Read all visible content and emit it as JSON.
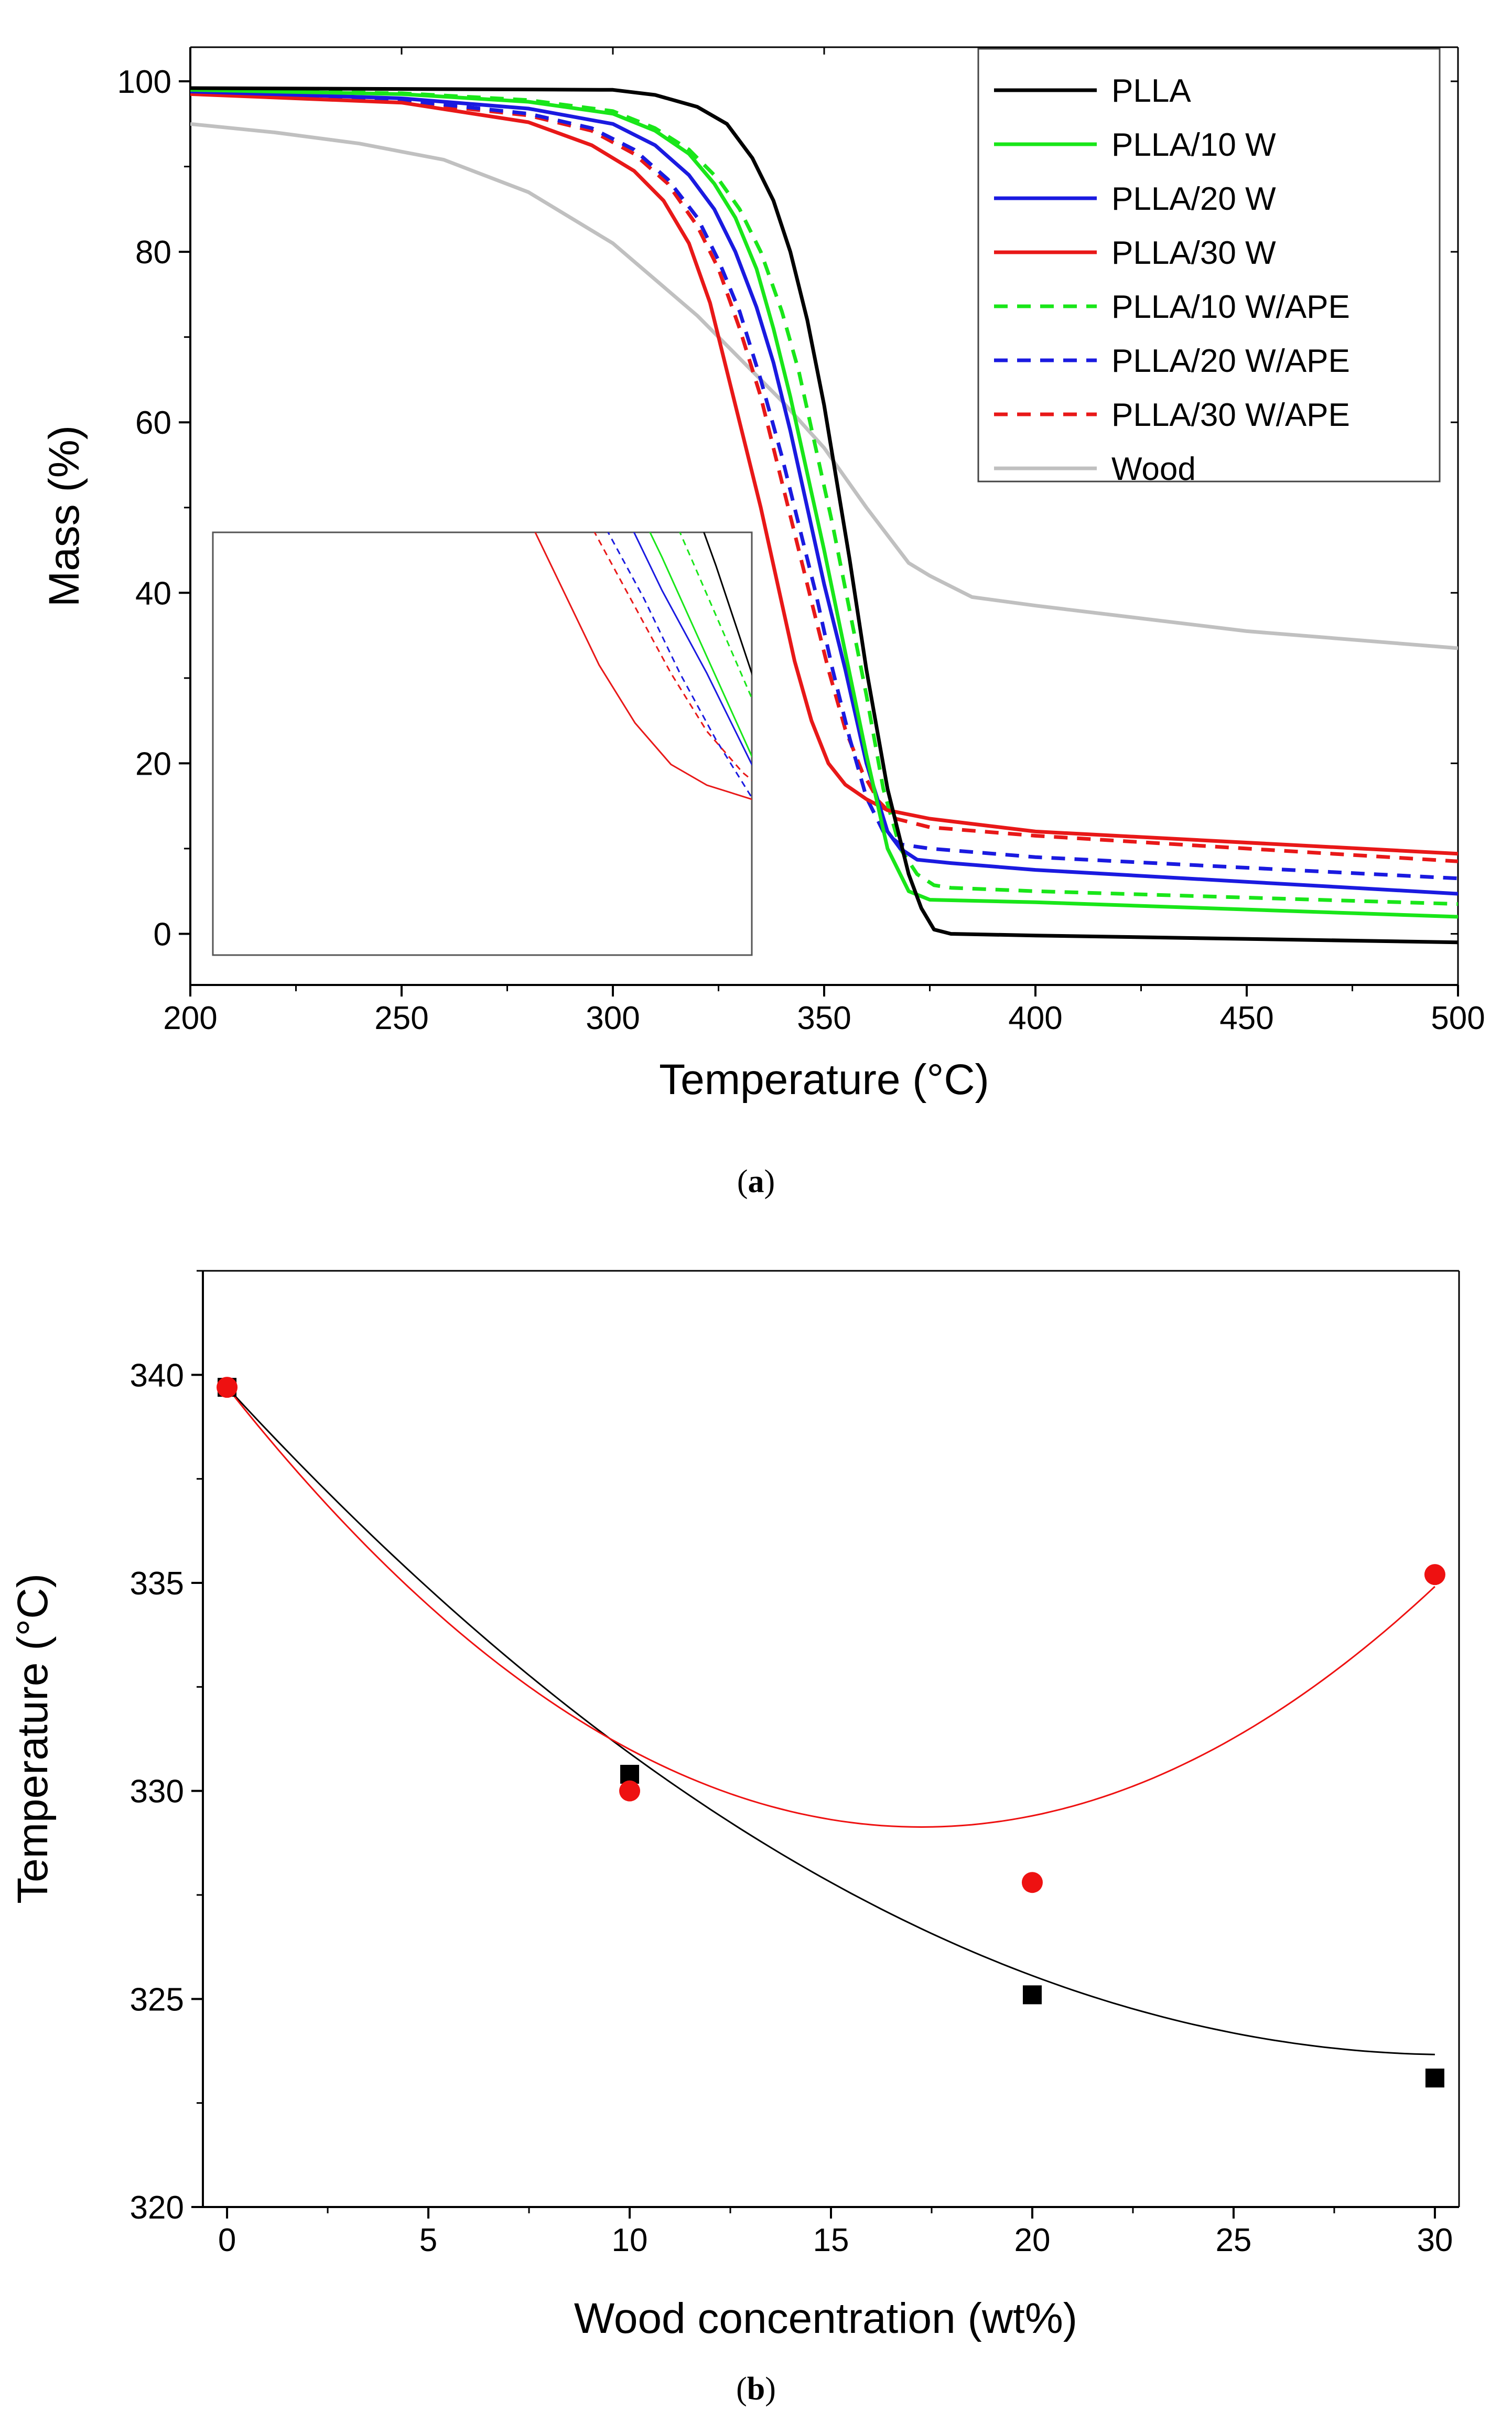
{
  "chart_data": [
    {
      "panel": "a",
      "panel_label": {
        "open": "(",
        "letter": "a",
        "close": ")"
      },
      "type": "line",
      "title": "",
      "xlabel": "Temperature (°C)",
      "ylabel": "Mass (%)",
      "xlim": [
        200,
        500
      ],
      "ylim": [
        -6,
        104
      ],
      "xticks": [
        200,
        250,
        300,
        350,
        400,
        450,
        500
      ],
      "yticks": [
        0,
        20,
        40,
        60,
        80,
        100
      ],
      "grid": false,
      "legend_position": "top-right",
      "series": [
        {
          "name": "PLLA",
          "color": "#000000",
          "dash": "solid",
          "x": [
            200,
            300,
            310,
            320,
            327,
            333,
            338,
            342,
            346,
            350,
            353,
            356,
            360,
            365,
            370,
            373,
            376,
            380,
            400,
            500
          ],
          "y": [
            99.2,
            99.0,
            98.4,
            97.0,
            95.0,
            91.0,
            86.0,
            80.0,
            72.0,
            62.0,
            53.0,
            44.0,
            31.0,
            17.0,
            7.0,
            3.0,
            0.5,
            0.0,
            -0.2,
            -1.0
          ]
        },
        {
          "name": "PLLA/10 W",
          "color": "#19e619",
          "dash": "solid",
          "x": [
            200,
            250,
            280,
            300,
            310,
            318,
            324,
            329,
            334,
            338,
            342,
            346,
            350,
            355,
            360,
            365,
            370,
            375,
            400,
            500
          ],
          "y": [
            99.0,
            98.5,
            97.6,
            96.2,
            94.2,
            91.5,
            88.0,
            84.0,
            78.0,
            71.0,
            63.0,
            54.0,
            45.0,
            33.0,
            21.0,
            10.0,
            5.0,
            4.0,
            3.7,
            2.0
          ]
        },
        {
          "name": "PLLA/20 W",
          "color": "#1a1ae0",
          "dash": "solid",
          "x": [
            200,
            250,
            280,
            300,
            310,
            318,
            324,
            329,
            334,
            338,
            342,
            346,
            350,
            355,
            360,
            365,
            368,
            372,
            380,
            400,
            500
          ],
          "y": [
            98.8,
            98.0,
            96.8,
            95.0,
            92.5,
            89.0,
            85.0,
            80.0,
            73.5,
            67.0,
            59.0,
            50.0,
            41.0,
            31.0,
            20.0,
            12.0,
            10.0,
            8.7,
            8.3,
            7.5,
            4.7
          ]
        },
        {
          "name": "PLLA/30 W",
          "color": "#e81818",
          "dash": "solid",
          "x": [
            200,
            250,
            280,
            295,
            305,
            312,
            318,
            323,
            327,
            331,
            335,
            339,
            343,
            347,
            351,
            355,
            360,
            365,
            375,
            400,
            500
          ],
          "y": [
            98.5,
            97.5,
            95.2,
            92.5,
            89.5,
            86.0,
            81.0,
            74.0,
            66.0,
            58.0,
            50.0,
            41.0,
            32.0,
            25.0,
            20.0,
            17.5,
            15.8,
            14.5,
            13.5,
            12.0,
            9.4
          ]
        },
        {
          "name": "PLLA/10 W/APE",
          "color": "#19e619",
          "dash": "dashed",
          "x": [
            200,
            250,
            280,
            300,
            310,
            318,
            325,
            330,
            335,
            340,
            344,
            348,
            352,
            356,
            360,
            364,
            368,
            372,
            376,
            380,
            400,
            500
          ],
          "y": [
            99.0,
            98.6,
            97.8,
            96.5,
            94.5,
            92.0,
            88.5,
            85.0,
            80.0,
            73.0,
            66.0,
            57.0,
            48.0,
            38.0,
            28.0,
            17.0,
            10.0,
            7.0,
            5.7,
            5.4,
            5.0,
            3.5
          ]
        },
        {
          "name": "PLLA/20 W/APE",
          "color": "#1a1ae0",
          "dash": "dashed",
          "x": [
            200,
            250,
            280,
            295,
            305,
            313,
            320,
            325,
            330,
            335,
            340,
            344,
            348,
            352,
            356,
            360,
            364,
            368,
            375,
            400,
            500
          ],
          "y": [
            98.8,
            97.8,
            96.2,
            94.5,
            92.0,
            88.5,
            84.0,
            79.0,
            73.0,
            65.0,
            56.0,
            48.0,
            40.0,
            31.0,
            23.0,
            16.0,
            12.0,
            10.5,
            10.0,
            9.0,
            6.5
          ]
        },
        {
          "name": "PLLA/30 W/APE",
          "color": "#e81818",
          "dash": "dashed",
          "x": [
            200,
            250,
            280,
            295,
            305,
            313,
            320,
            325,
            330,
            335,
            339,
            343,
            347,
            351,
            355,
            359,
            363,
            367,
            375,
            400,
            500
          ],
          "y": [
            98.6,
            97.6,
            96.0,
            94.2,
            91.5,
            88.0,
            83.0,
            78.0,
            71.0,
            63.0,
            55.0,
            47.0,
            39.0,
            31.0,
            24.0,
            19.0,
            15.5,
            13.5,
            12.5,
            11.5,
            8.5
          ]
        },
        {
          "name": "Wood",
          "color": "#c0c0c0",
          "dash": "solid",
          "x": [
            200,
            220,
            240,
            260,
            280,
            300,
            320,
            340,
            350,
            360,
            370,
            375,
            385,
            400,
            450,
            500
          ],
          "y": [
            95.0,
            94.0,
            92.7,
            90.8,
            87.0,
            81.0,
            72.5,
            62.5,
            57.0,
            50.0,
            43.5,
            42.0,
            39.5,
            38.5,
            35.5,
            33.5
          ]
        }
      ],
      "inset": {
        "xlim": [
          300,
          360
        ],
        "ylim": [
          -3,
          48
        ]
      }
    },
    {
      "panel": "b",
      "panel_label": {
        "open": "(",
        "letter": "b",
        "close": ")"
      },
      "type": "scatter",
      "title": "",
      "xlabel": "Wood concentration (wt%)",
      "ylabel": "Temperature (°C)",
      "xlim": [
        -0.6,
        30.6
      ],
      "ylim": [
        320,
        342.5
      ],
      "xticks": [
        0,
        5,
        10,
        15,
        20,
        25,
        30
      ],
      "yticks": [
        320,
        325,
        330,
        335,
        340
      ],
      "grid": false,
      "legend": "none",
      "series": [
        {
          "name": "black squares",
          "marker": "square",
          "color": "#000000",
          "x": [
            0,
            10,
            20,
            30
          ],
          "y": [
            339.7,
            330.4,
            325.1,
            323.1
          ]
        },
        {
          "name": "red circles",
          "marker": "circle",
          "color": "#ee1111",
          "x": [
            0,
            10,
            20,
            30
          ],
          "y": [
            339.7,
            330.0,
            327.8,
            335.2
          ]
        }
      ],
      "fits": [
        {
          "name": "black fit",
          "color": "#000000",
          "poly": [
            339.7,
            -1.052,
            0.01725
          ]
        },
        {
          "name": "red fit",
          "color": "#ee1111",
          "poly": [
            339.7,
            -1.2255,
            0.03553
          ]
        }
      ]
    }
  ]
}
